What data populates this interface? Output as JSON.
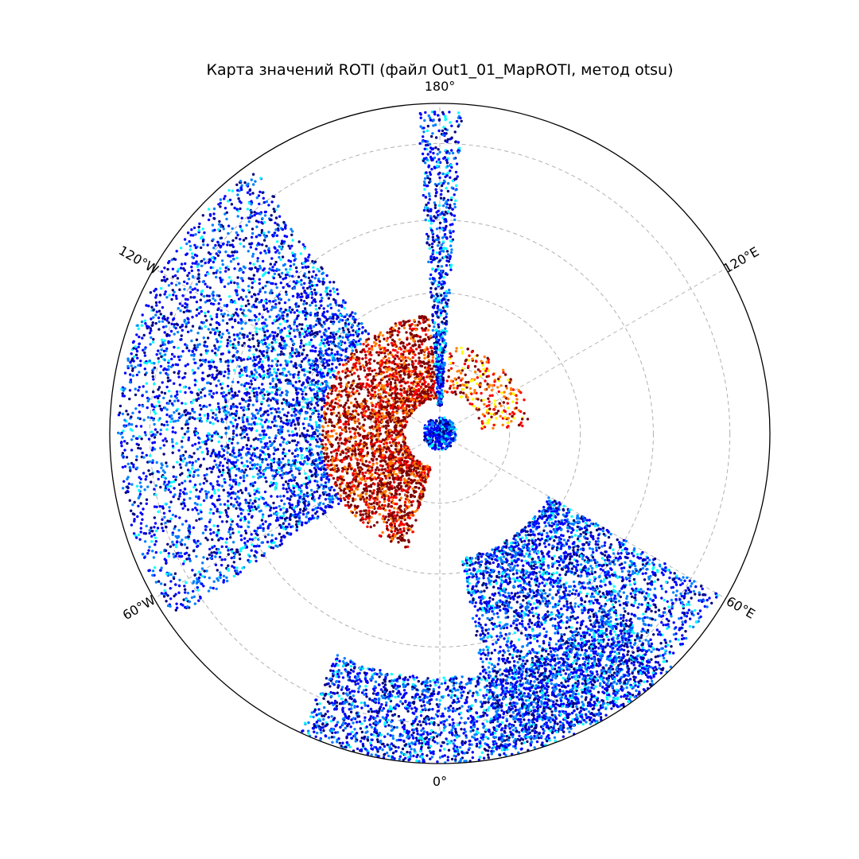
{
  "chart_data": {
    "type": "scatter",
    "projection": "polar-stereographic-north",
    "title": "Карта значений ROTI (файл Out1_01_MapROTI, метод otsu)",
    "lon_tick_labels": [
      {
        "lon": 180,
        "label": "180°"
      },
      {
        "lon": 120,
        "label": "120°E"
      },
      {
        "lon": 60,
        "label": "60°E"
      },
      {
        "lon": 0,
        "label": "0°"
      },
      {
        "lon": -60,
        "label": "60°W"
      },
      {
        "lon": -120,
        "label": "120°W"
      }
    ],
    "lat_circles": [
      80,
      70,
      60,
      50
    ],
    "lat_range": [
      45,
      90
    ],
    "grid": true,
    "colormap": "jet",
    "colormap_stops": [
      "#00007f",
      "#0000ff",
      "#007fff",
      "#00ffff",
      "#7fff7f",
      "#ffff00",
      "#ff7f00",
      "#ff0000",
      "#7f0000"
    ],
    "grid_color": "#b0b0b0",
    "clusters": [
      {
        "name": "polar-cap",
        "lon_range": [
          -180,
          180
        ],
        "lat_range": [
          87.6,
          90
        ],
        "roti_level": 0.15
      },
      {
        "name": "auroral-oval-west",
        "lon_range": [
          -175,
          -15
        ],
        "lat_range": [
          73,
          85
        ],
        "roti_level": 0.8
      },
      {
        "name": "auroral-oval-east",
        "lon_range": [
          95,
          175
        ],
        "lat_range": [
          77,
          84
        ],
        "roti_level": 0.7
      },
      {
        "name": "midlat-west-sector",
        "lon_range": [
          -145,
          -55
        ],
        "lat_range": [
          46,
          73
        ],
        "roti_level": 0.18
      },
      {
        "name": "midlat-east-sector",
        "lon_range": [
          10,
          60
        ],
        "lat_range": [
          46,
          72
        ],
        "roti_level": 0.18
      },
      {
        "name": "midlat-south-sector",
        "lon_range": [
          -25,
          45
        ],
        "lat_range": [
          45,
          56
        ],
        "roti_level": 0.18
      },
      {
        "name": "meridian-180",
        "lon_range": [
          176,
          184
        ],
        "lat_range": [
          46,
          86
        ],
        "roti_level": 0.18
      }
    ]
  }
}
